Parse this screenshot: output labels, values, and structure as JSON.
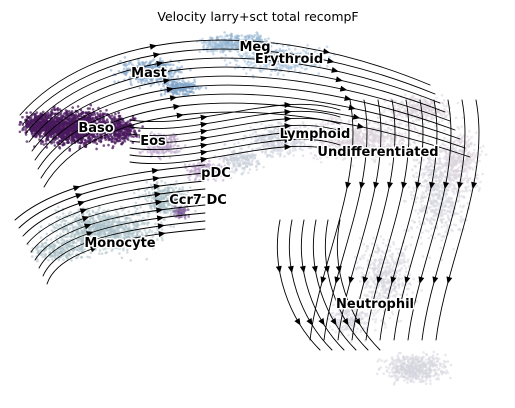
{
  "chart_data": {
    "type": "scatter",
    "title": "Velocity larry+sct total recompF",
    "xlabel": "",
    "ylabel": "",
    "grid": false,
    "axes_visible": false,
    "overlay": "velocity streamlines with arrowheads",
    "clusters": [
      {
        "name": "Meg",
        "color": "#8fb2d0"
      },
      {
        "name": "Erythroid",
        "color": "#a4bfd8"
      },
      {
        "name": "Mast",
        "color": "#7da3c6"
      },
      {
        "name": "Baso",
        "color": "#4a1a5e"
      },
      {
        "name": "Eos",
        "color": "#b9a2c9"
      },
      {
        "name": "Lymphoid",
        "color": "#c9cdd8"
      },
      {
        "name": "Undifferentiated",
        "color": "#ddd4dc"
      },
      {
        "name": "pDC",
        "color": "#b7aac4"
      },
      {
        "name": "Ccr7 DC",
        "color": "#7a5a98"
      },
      {
        "name": "Monocyte",
        "color": "#a9bfc7"
      },
      {
        "name": "Neutrophil",
        "color": "#d6d5de"
      }
    ]
  }
}
